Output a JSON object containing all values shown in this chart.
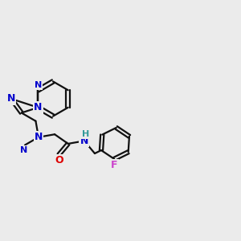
{
  "bg": "#ebebeb",
  "bc": "#111111",
  "nc": "#0000cc",
  "oc": "#dd0000",
  "fc": "#cc44cc",
  "hc": "#339999",
  "lw": 1.6,
  "fs": 9.0,
  "fs_small": 8.0,
  "xlim": [
    0,
    10
  ],
  "ylim": [
    0,
    10
  ],
  "dbl_off": 0.08
}
